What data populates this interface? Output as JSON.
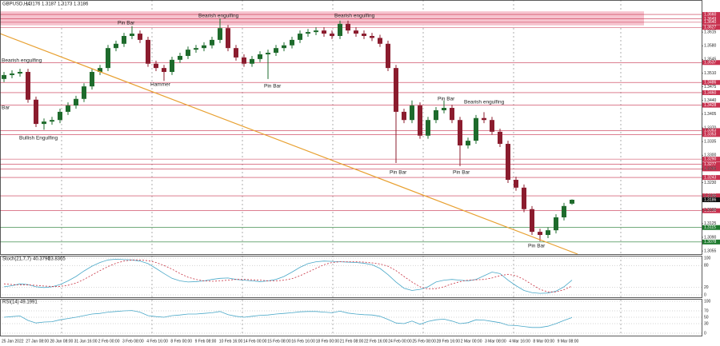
{
  "chart_data": [
    {
      "type": "candlestick",
      "symbol": "GBPUSD,H4",
      "ylim": [
        1.3047,
        1.3697
      ],
      "yticks": [
        1.3615,
        {
          "value": 1.358,
          "label": "1.3580"
        },
        1.3545,
        {
          "value": 1.351,
          "label": "1.3510"
        },
        1.3475,
        {
          "value": 1.344,
          "label": "1.3440"
        },
        1.3405,
        {
          "value": 1.337,
          "label": "1.3370"
        },
        1.3335,
        {
          "value": 1.33,
          "label": "1.3300"
        },
        1.3265,
        {
          "value": 1.323,
          "label": "1.3230"
        },
        1.3195,
        {
          "value": 1.316,
          "label": "1.3160"
        },
        1.3125,
        {
          "value": 1.309,
          "label": "1.3090"
        },
        1.3055
      ],
      "up_color": "#1e6b2c",
      "down_color": "#8b1c2e",
      "open": [
        1.3495,
        1.3505,
        1.3509,
        1.3513,
        1.3442,
        1.338,
        1.3386,
        1.339,
        1.3411,
        1.3427,
        1.3444,
        1.3476,
        1.3513,
        1.3523,
        1.3574,
        1.3585,
        1.3605,
        1.3611,
        1.3595,
        1.3534,
        1.3523,
        1.3513,
        1.3544,
        1.3554,
        1.357,
        1.3574,
        1.3581,
        1.3595,
        1.3625,
        1.3574,
        1.355,
        1.3534,
        1.3546,
        1.3558,
        1.3562,
        1.3574,
        1.3581,
        1.3595,
        1.3611,
        1.3615,
        1.3619,
        1.3611,
        1.3605,
        1.3636,
        1.3619,
        1.3611,
        1.3605,
        1.36,
        1.3585,
        1.3523,
        1.3411,
        1.339,
        1.3427,
        1.335,
        1.339,
        1.3415,
        1.3421,
        1.339,
        1.3325,
        1.3337,
        1.3395,
        1.339,
        1.336,
        1.3329,
        1.3237,
        1.3217,
        1.3162,
        1.3104,
        1.3096,
        1.3108,
        1.3141,
        1.3176
      ],
      "high": [
        1.3513,
        1.3517,
        1.3521,
        1.3521,
        1.345,
        1.3394,
        1.3398,
        1.3419,
        1.3435,
        1.3452,
        1.3484,
        1.3521,
        1.3531,
        1.3582,
        1.3593,
        1.3613,
        1.363,
        1.3619,
        1.3603,
        1.3542,
        1.3531,
        1.3552,
        1.3562,
        1.3578,
        1.3582,
        1.3589,
        1.3603,
        1.365,
        1.3633,
        1.3582,
        1.3558,
        1.3554,
        1.3566,
        1.357,
        1.3582,
        1.3589,
        1.3603,
        1.3619,
        1.3623,
        1.3627,
        1.3627,
        1.3619,
        1.3644,
        1.3644,
        1.3627,
        1.3619,
        1.3613,
        1.3608,
        1.3593,
        1.3531,
        1.3419,
        1.344,
        1.3435,
        1.3398,
        1.3423,
        1.344,
        1.3429,
        1.3398,
        1.3345,
        1.3403,
        1.341,
        1.3398,
        1.3368,
        1.3337,
        1.3245,
        1.3225,
        1.317,
        1.3112,
        1.3116,
        1.3149,
        1.3178,
        1.3187
      ],
      "low": [
        1.3487,
        1.3497,
        1.3501,
        1.3434,
        1.3372,
        1.3365,
        1.3378,
        1.3382,
        1.3403,
        1.3419,
        1.3436,
        1.3468,
        1.3505,
        1.3515,
        1.3566,
        1.3577,
        1.3597,
        1.3587,
        1.3526,
        1.3515,
        1.349,
        1.3505,
        1.3536,
        1.3546,
        1.3562,
        1.3566,
        1.3573,
        1.3587,
        1.3566,
        1.3542,
        1.3526,
        1.3526,
        1.3538,
        1.3495,
        1.3554,
        1.3566,
        1.3573,
        1.3587,
        1.3603,
        1.3607,
        1.3603,
        1.3597,
        1.3597,
        1.3611,
        1.3603,
        1.3597,
        1.3592,
        1.3577,
        1.3515,
        1.328,
        1.3382,
        1.3382,
        1.3342,
        1.3342,
        1.3382,
        1.3407,
        1.3382,
        1.3272,
        1.3317,
        1.3329,
        1.3382,
        1.3352,
        1.3321,
        1.3229,
        1.3209,
        1.3154,
        1.3096,
        1.308,
        1.3088,
        1.31,
        1.3133,
        1.3173
      ],
      "close": [
        1.3505,
        1.3509,
        1.3513,
        1.3442,
        1.338,
        1.3386,
        1.339,
        1.3411,
        1.3427,
        1.3444,
        1.3476,
        1.3513,
        1.3523,
        1.3574,
        1.3585,
        1.3605,
        1.3611,
        1.3595,
        1.3534,
        1.3523,
        1.3513,
        1.3544,
        1.3554,
        1.357,
        1.3574,
        1.3581,
        1.3595,
        1.3625,
        1.3574,
        1.355,
        1.3534,
        1.3546,
        1.3558,
        1.3562,
        1.3574,
        1.3581,
        1.3595,
        1.3611,
        1.3615,
        1.3619,
        1.3611,
        1.3605,
        1.3636,
        1.3619,
        1.3611,
        1.3605,
        1.36,
        1.3585,
        1.3523,
        1.3411,
        1.339,
        1.3427,
        1.335,
        1.339,
        1.3415,
        1.3421,
        1.339,
        1.3325,
        1.3337,
        1.3395,
        1.339,
        1.336,
        1.3329,
        1.3237,
        1.3217,
        1.3162,
        1.3104,
        1.3096,
        1.3108,
        1.3141,
        1.317,
        1.3186
      ],
      "zones": [
        {
          "from": 1.3632,
          "to": 1.3668,
          "color": "#f6c3ce"
        }
      ],
      "levels": [
        {
          "value": 1.366,
          "label": "1.3660",
          "color": "#c8304e"
        },
        {
          "value": 1.3649,
          "label": "1.3649",
          "color": "#c8304e"
        },
        {
          "value": 1.364,
          "label": "1.3640",
          "color": "#c8304e"
        },
        {
          "value": 1.3627,
          "label": "1.3627",
          "color": "#c8304e"
        },
        {
          "value": 1.3537,
          "label": "1.3537",
          "color": "#c8304e"
        },
        {
          "value": 1.3486,
          "label": "1.3486",
          "color": "#c8304e"
        },
        {
          "value": 1.346,
          "label": "1.3460",
          "color": "#c8304e"
        },
        {
          "value": 1.3428,
          "label": "1.3428",
          "color": "#c8304e"
        },
        {
          "value": 1.3363,
          "label": "1.3363",
          "color": "#c8304e"
        },
        {
          "value": 1.3353,
          "label": "1.3353",
          "color": "#c8304e"
        },
        {
          "value": 1.329,
          "label": "1.3290",
          "color": "#c8304e"
        },
        {
          "value": 1.3277,
          "label": "1.3277",
          "color": "#c8304e"
        },
        {
          "value": 1.3265,
          "label": "1.3265",
          "color": "#c8304e"
        },
        {
          "value": 1.3243,
          "label": "1.3243",
          "color": "#c8304e"
        },
        {
          "value": 1.3196,
          "label": "1.3196",
          "color": "#c8304e"
        },
        {
          "value": 1.3158,
          "label": "1.3158",
          "color": "#c8304e"
        },
        {
          "value": 1.3115,
          "label": "1.3115",
          "color": "#1e7a2e"
        },
        {
          "value": 1.3078,
          "label": "1.3078",
          "color": "#1e7a2e"
        }
      ],
      "annotations": [
        "Pin Bar",
        "Bearish engulfing",
        "Bearish engulfing",
        "Bearish engulfing",
        "Hammer",
        "Pin Bar",
        "Bar",
        "Bullish Engulfing",
        "Pin Bar",
        "Bearish engulfing",
        "Pin Bar",
        "Pin Bar",
        "Pin Bar"
      ],
      "x_labels": [
        "25 Jan 2022",
        "27 Jan 08:00",
        "28 Jan 08:00",
        "31 Jan 16:00",
        "2 Feb 00:00",
        "3 Feb 08:00",
        "4 Feb 16:00",
        "8 Feb 00:00",
        "9 Feb 08:00",
        "10 Feb 16:00",
        "14 Feb 00:00",
        "15 Feb 08:00",
        "16 Feb 16:00",
        "18 Feb 00:00",
        "21 Feb 08:00",
        "22 Feb 16:00",
        "24 Feb 00:00",
        "25 Feb 08:00",
        "28 Feb 16:00",
        "2 Mar 00:00",
        "3 Mar 08:00",
        "4 Mar 16:00",
        "8 Mar 00:00",
        "9 Mar 08:00"
      ]
    },
    {
      "type": "line",
      "title": "Stoch(21,7,7)",
      "readout": [
        40.3796,
        23.8365
      ],
      "ylim": [
        0,
        100
      ],
      "yticks": [
        100,
        80,
        20,
        0
      ],
      "series": [
        {
          "color": "#4aa8c8",
          "dash": false,
          "values": [
            22,
            25,
            30,
            28,
            22,
            20,
            22,
            28,
            38,
            50,
            65,
            78,
            88,
            95,
            97,
            96,
            95,
            92,
            85,
            72,
            58,
            45,
            38,
            35,
            36,
            38,
            42,
            45,
            46,
            42,
            40,
            38,
            36,
            38,
            42,
            50,
            62,
            75,
            85,
            90,
            92,
            91,
            90,
            89,
            88,
            86,
            82,
            72,
            55,
            35,
            18,
            12,
            15,
            22,
            35,
            40,
            42,
            40,
            38,
            42,
            52,
            62,
            58,
            40,
            25,
            12,
            6,
            4,
            5,
            10,
            22,
            40
          ]
        },
        {
          "color": "#c83040",
          "dash": true,
          "values": [
            30,
            28,
            27,
            27,
            26,
            24,
            23,
            23,
            26,
            32,
            42,
            54,
            66,
            77,
            86,
            92,
            95,
            95,
            93,
            88,
            80,
            70,
            58,
            48,
            42,
            38,
            37,
            38,
            40,
            42,
            42,
            41,
            40,
            38,
            38,
            40,
            44,
            52,
            62,
            72,
            82,
            88,
            90,
            90,
            90,
            89,
            87,
            84,
            78,
            66,
            50,
            35,
            22,
            16,
            17,
            22,
            30,
            36,
            40,
            41,
            42,
            46,
            52,
            56,
            52,
            42,
            28,
            15,
            8,
            8,
            14,
            24
          ]
        }
      ]
    },
    {
      "type": "line",
      "title": "RSI(14)",
      "readout": [
        49.1991
      ],
      "ylim": [
        0,
        100
      ],
      "yticks": [
        100,
        70,
        50,
        30,
        0
      ],
      "series": [
        {
          "color": "#4aa8c8",
          "dash": false,
          "values": [
            50,
            52,
            54,
            40,
            32,
            35,
            36,
            42,
            46,
            50,
            55,
            60,
            62,
            66,
            68,
            70,
            71,
            66,
            55,
            52,
            50,
            55,
            57,
            60,
            60,
            62,
            64,
            68,
            58,
            53,
            50,
            53,
            56,
            57,
            60,
            62,
            64,
            67,
            68,
            68,
            66,
            64,
            69,
            63,
            60,
            58,
            57,
            53,
            43,
            32,
            30,
            38,
            28,
            37,
            42,
            44,
            38,
            30,
            33,
            42,
            41,
            37,
            33,
            25,
            24,
            21,
            18,
            18,
            22,
            30,
            40,
            49
          ]
        }
      ]
    }
  ]
}
